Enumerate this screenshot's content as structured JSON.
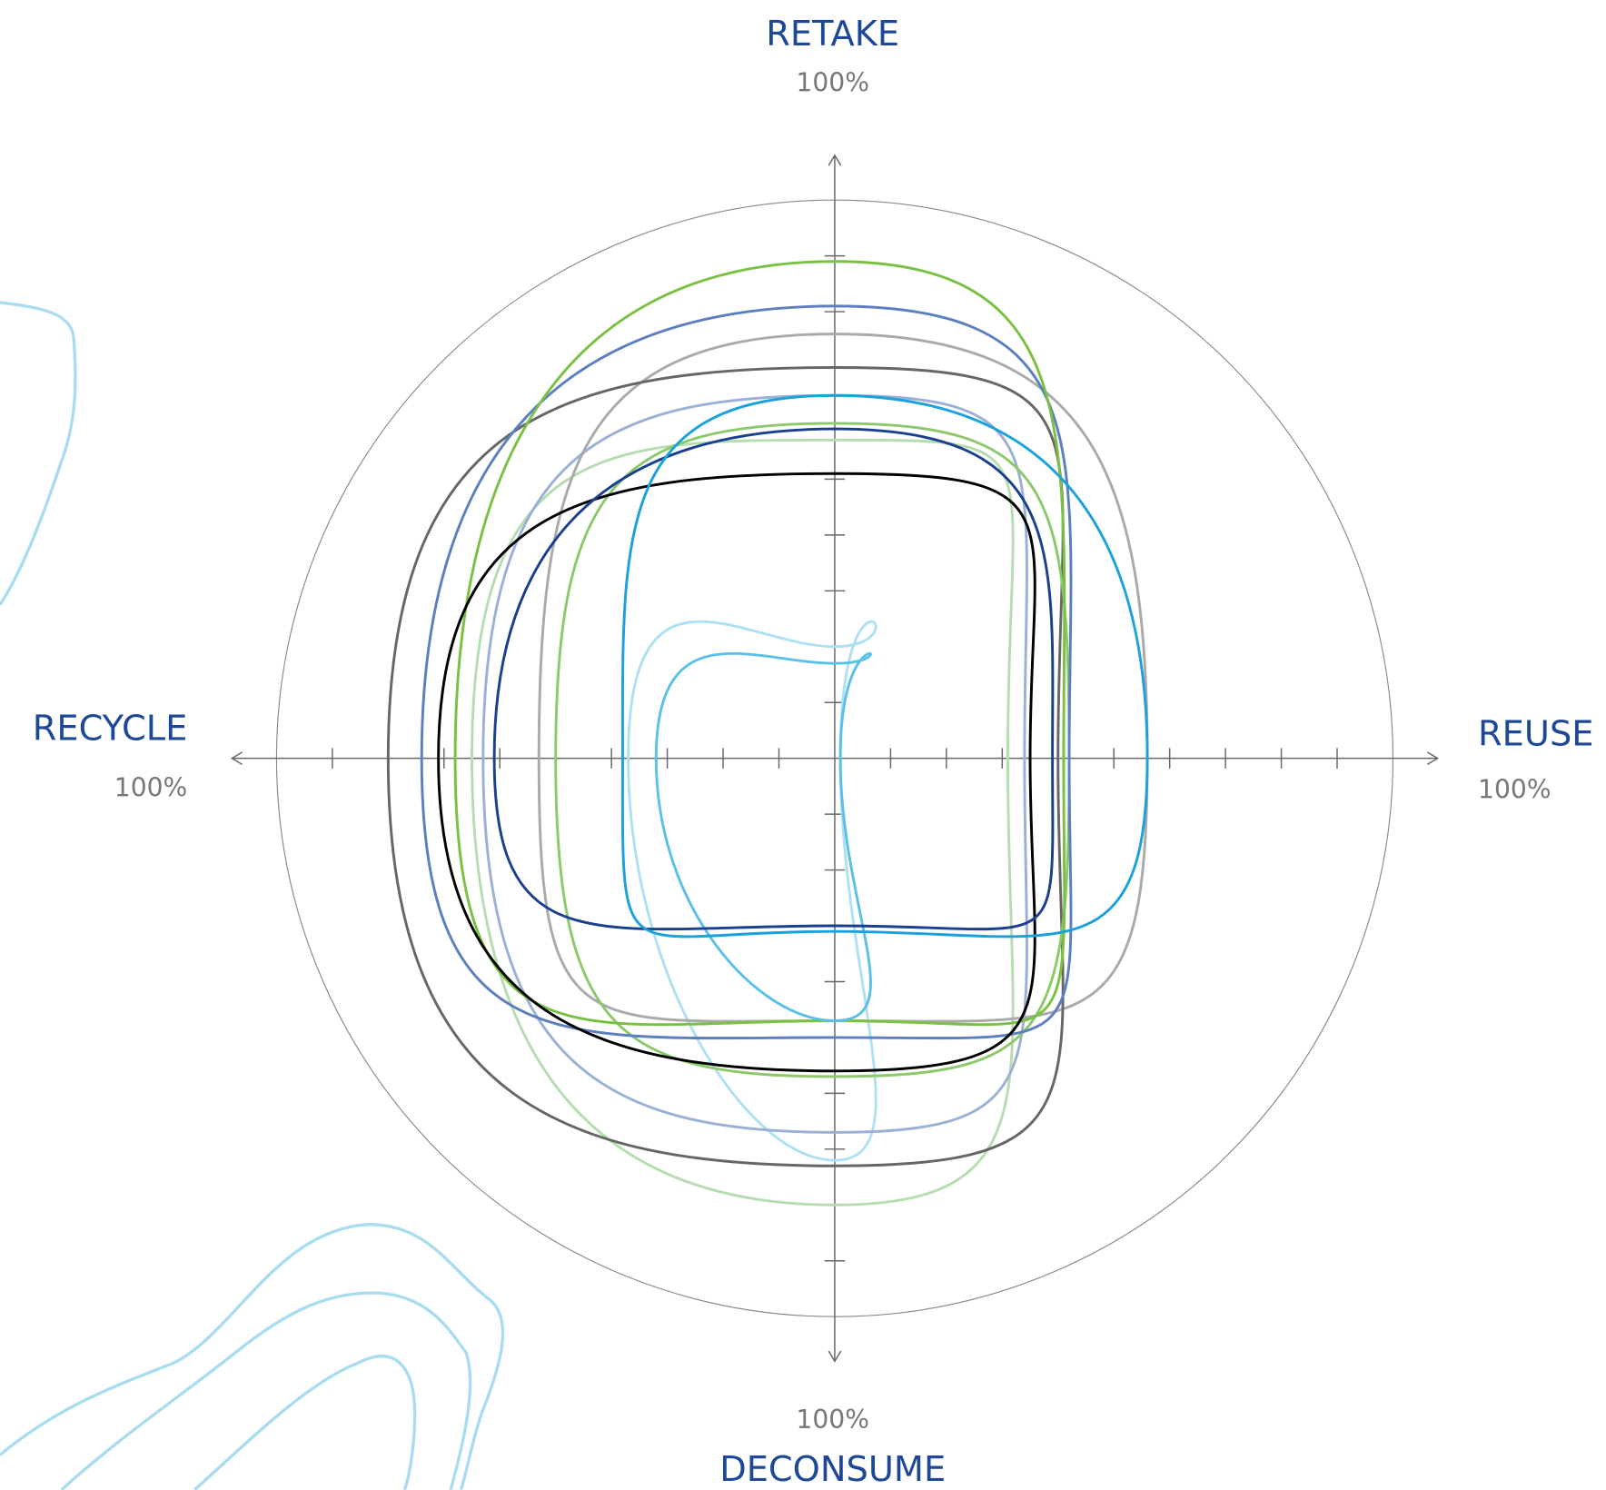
{
  "chart_data": {
    "type": "radar",
    "axes": [
      {
        "name": "RETAKE",
        "max": {
          "value": 100,
          "label": "100%"
        }
      },
      {
        "name": "REUSE",
        "max": {
          "value": 100,
          "label": "100%"
        }
      },
      {
        "name": "DECONSUME",
        "max": {
          "value": 100,
          "label": "100%"
        }
      },
      {
        "name": "RECYCLE",
        "max": {
          "value": 100,
          "label": "100%"
        }
      }
    ],
    "rlim": [
      0,
      100
    ],
    "rticks": [
      10,
      20,
      30,
      40,
      50,
      60,
      70,
      80,
      90
    ],
    "series": [
      {
        "color": "#b5ddb0",
        "values": [
          57,
          31,
          80,
          65
        ]
      },
      {
        "color": "#aee0f4",
        "values": [
          20,
          1,
          72,
          37
        ]
      },
      {
        "color": "#9bb0d6",
        "values": [
          65,
          34,
          67,
          63
        ]
      },
      {
        "color": "#aaaaaa",
        "values": [
          76,
          56,
          47,
          53
        ]
      },
      {
        "color": "#666666",
        "values": [
          70,
          40,
          73,
          80
        ]
      },
      {
        "color": "#8cc96b",
        "values": [
          60,
          42,
          57,
          50
        ]
      },
      {
        "color": "#5b7fbf",
        "values": [
          81,
          42,
          50,
          74
        ]
      },
      {
        "color": "#7ac143",
        "values": [
          89,
          41,
          47,
          68
        ]
      },
      {
        "color": "#5bc0e8",
        "values": [
          17,
          1,
          47,
          32
        ]
      },
      {
        "color": "#000000",
        "values": [
          51,
          35,
          56,
          71
        ]
      },
      {
        "color": "#1a3f8f",
        "values": [
          59,
          39,
          30,
          61
        ]
      },
      {
        "color": "#1ba1dc",
        "values": [
          65,
          56,
          31,
          38
        ]
      }
    ]
  }
}
